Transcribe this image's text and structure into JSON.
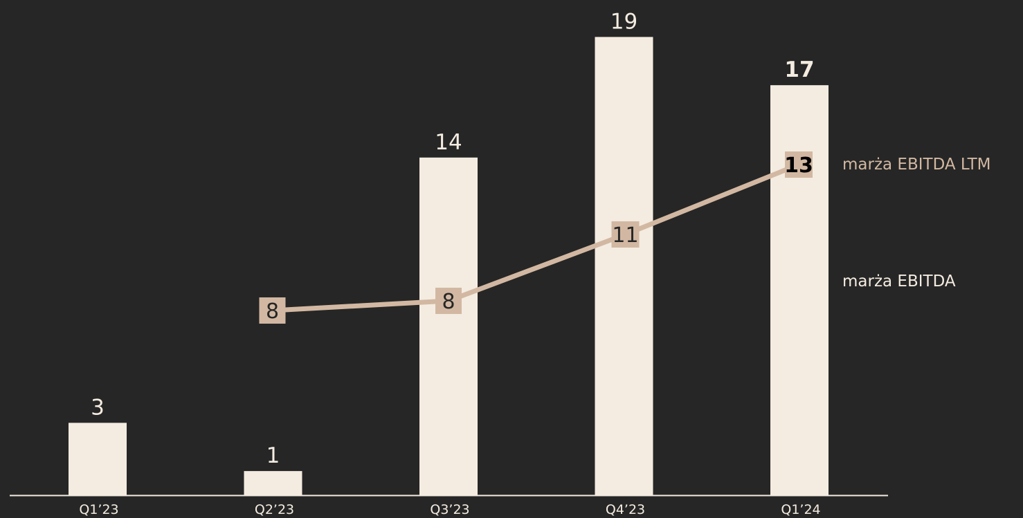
{
  "chart_data": {
    "type": "bar",
    "categories": [
      "Q1’23",
      "Q2’23",
      "Q3’23",
      "Q4’23",
      "Q1’24"
    ],
    "series": [
      {
        "name": "marża EBITDA",
        "type": "bar",
        "values": [
          3,
          1,
          14,
          19,
          17
        ],
        "labels": [
          "3",
          "1",
          "14",
          "19",
          "17"
        ],
        "emphasized": [
          false,
          false,
          false,
          false,
          true
        ]
      },
      {
        "name": "marża EBITDA LTM",
        "type": "line",
        "values": [
          null,
          8,
          8,
          11,
          13
        ],
        "labels": [
          null,
          "8",
          "8",
          "11",
          "13"
        ],
        "emphasized": [
          false,
          false,
          false,
          false,
          true
        ]
      }
    ],
    "title": "",
    "xlabel": "",
    "ylabel": "",
    "ylim": [
      0,
      19.5
    ],
    "grid": false,
    "legend_position": "right",
    "colors": {
      "background": "#262626",
      "bar": "#f4ece1",
      "line": "#d2b8a2",
      "axis": "#f4ece1",
      "bar_label": "#f4ece1",
      "bar_label_emphasis": "#ffffff",
      "marker_label": "#262626",
      "marker_label_emphasis": "#000000",
      "legend_ltm": "#d2b8a2",
      "legend_bar": "#f4ece1"
    }
  }
}
